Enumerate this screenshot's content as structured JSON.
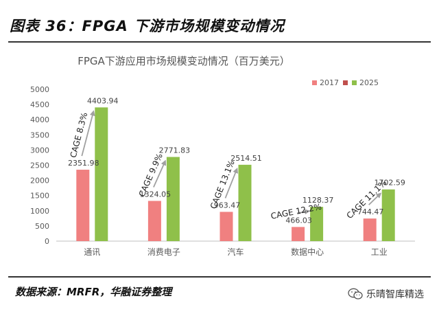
{
  "figure_title": "图表 36：FPGA 下游市场规模变动情况",
  "source_note": "数据来源：MRFR，华融证券整理",
  "watermark": {
    "text": "乐晴智库精选",
    "icon": "wechat-icon"
  },
  "colors": {
    "s2017": "#f08080",
    "s2025": "#8fc04a",
    "arrow": "#a0a0a0"
  },
  "chart_data": {
    "type": "bar",
    "title": "FPGA下游应用市场规模变动情况（百万美元）",
    "categories": [
      "通讯",
      "消费电子",
      "汽车",
      "数据中心",
      "工业"
    ],
    "series": [
      {
        "name": "2017",
        "values": [
          2351.98,
          1324.05,
          963.47,
          466.03,
          744.47
        ],
        "labels": [
          "2351.98",
          "1324.05",
          "963.47",
          "466.03",
          "744.47"
        ]
      },
      {
        "name": "2025",
        "values": [
          4403.94,
          2771.83,
          2514.51,
          1128.37,
          1702.59
        ],
        "labels": [
          "4403.94",
          "2771.83",
          "2514.51",
          "1128.37",
          "1702.59"
        ]
      }
    ],
    "annotations": [
      "CAGE 8.3%",
      "CAGE 9.9%",
      "CAGE 13.1%",
      "CAGE 12.2%",
      "CAGE 11.1%"
    ],
    "ylim": [
      0,
      5000
    ],
    "yticks": [
      "0",
      "500",
      "1000",
      "1500",
      "2000",
      "2500",
      "3000",
      "3500",
      "4000",
      "4500",
      "5000"
    ],
    "legend_position": "top-right",
    "grid": false
  }
}
